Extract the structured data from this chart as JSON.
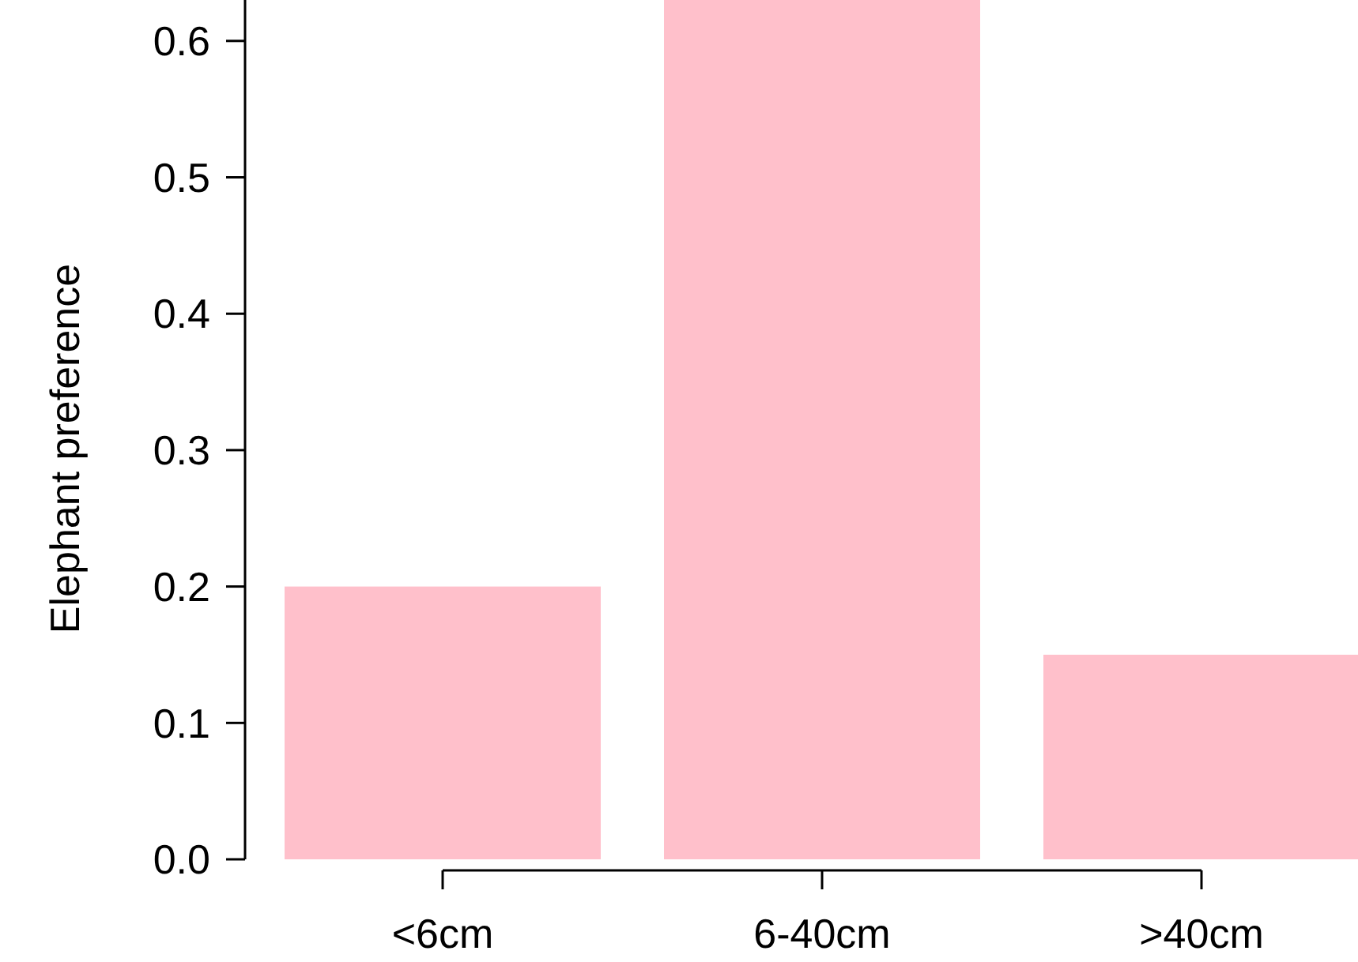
{
  "chart_data": {
    "type": "bar",
    "ylabel": "Elephant preference",
    "categories": [
      "<6cm",
      "6-40cm",
      ">40cm"
    ],
    "values": [
      0.2,
      0.63,
      0.15
    ],
    "color": "#ffc0cb",
    "ylim": [
      0,
      0.63
    ],
    "yticks": [
      {
        "value": 0,
        "label": "0.0"
      },
      0.1,
      0.2,
      0.3,
      0.4,
      0.5,
      0.6
    ],
    "grid": false
  }
}
